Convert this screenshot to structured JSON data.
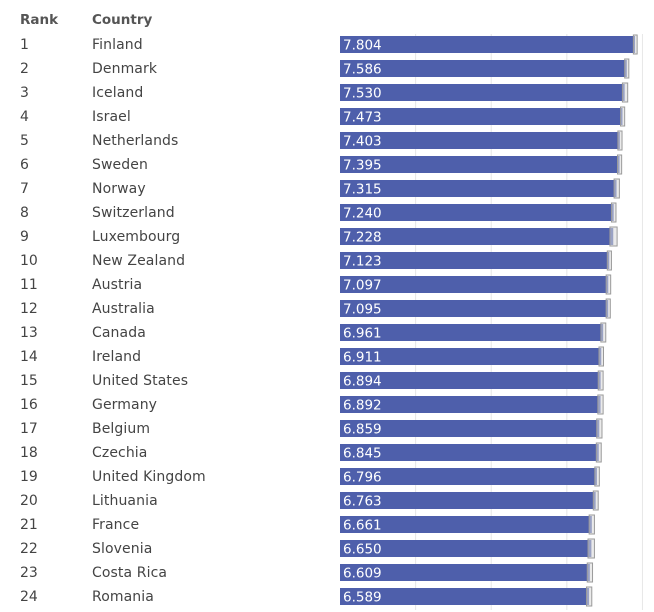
{
  "header": {
    "rank_label": "Rank",
    "country_label": "Country"
  },
  "colors": {
    "bar": "#4e5fab",
    "whisker": "#9a9a9a",
    "whisker_fill": "#d9d9d9",
    "gridline": "#e6e6e6",
    "label": "#ffffff"
  },
  "chart_data": {
    "type": "bar",
    "orientation": "horizontal",
    "categories": [
      "Finland",
      "Denmark",
      "Iceland",
      "Israel",
      "Netherlands",
      "Sweden",
      "Norway",
      "Switzerland",
      "Luxembourg",
      "New Zealand",
      "Austria",
      "Australia",
      "Canada",
      "Ireland",
      "United States",
      "Germany",
      "Belgium",
      "Czechia",
      "United Kingdom",
      "Lithuania",
      "France",
      "Slovenia",
      "Costa Rica",
      "Romania"
    ],
    "ranks": [
      "1",
      "2",
      "3",
      "4",
      "5",
      "6",
      "7",
      "8",
      "9",
      "10",
      "11",
      "12",
      "13",
      "14",
      "15",
      "16",
      "17",
      "18",
      "19",
      "20",
      "21",
      "22",
      "23",
      "24"
    ],
    "values": [
      7.804,
      7.586,
      7.53,
      7.473,
      7.403,
      7.395,
      7.315,
      7.24,
      7.228,
      7.123,
      7.097,
      7.095,
      6.961,
      6.911,
      6.894,
      6.892,
      6.859,
      6.845,
      6.796,
      6.763,
      6.661,
      6.65,
      6.609,
      6.589
    ],
    "value_labels": [
      "7.804",
      "7.586",
      "7.530",
      "7.473",
      "7.403",
      "7.395",
      "7.315",
      "7.240",
      "7.228",
      "7.123",
      "7.097",
      "7.095",
      "6.961",
      "6.911",
      "6.894",
      "6.892",
      "6.859",
      "6.845",
      "6.796",
      "6.763",
      "6.661",
      "6.650",
      "6.609",
      "6.589"
    ],
    "interval_low": [
      7.76,
      7.53,
      7.47,
      7.42,
      7.35,
      7.34,
      7.25,
      7.18,
      7.14,
      7.07,
      7.04,
      7.04,
      6.9,
      6.85,
      6.83,
      6.82,
      6.79,
      6.78,
      6.74,
      6.7,
      6.59,
      6.56,
      6.54,
      6.52
    ],
    "interval_high": [
      7.86,
      7.64,
      7.61,
      7.53,
      7.46,
      7.45,
      7.39,
      7.3,
      7.33,
      7.18,
      7.16,
      7.15,
      7.03,
      6.97,
      6.96,
      6.96,
      6.93,
      6.91,
      6.86,
      6.83,
      6.73,
      6.73,
      6.68,
      6.66
    ],
    "xlim": [
      0,
      8.2
    ],
    "grid": true,
    "legend": "none"
  }
}
